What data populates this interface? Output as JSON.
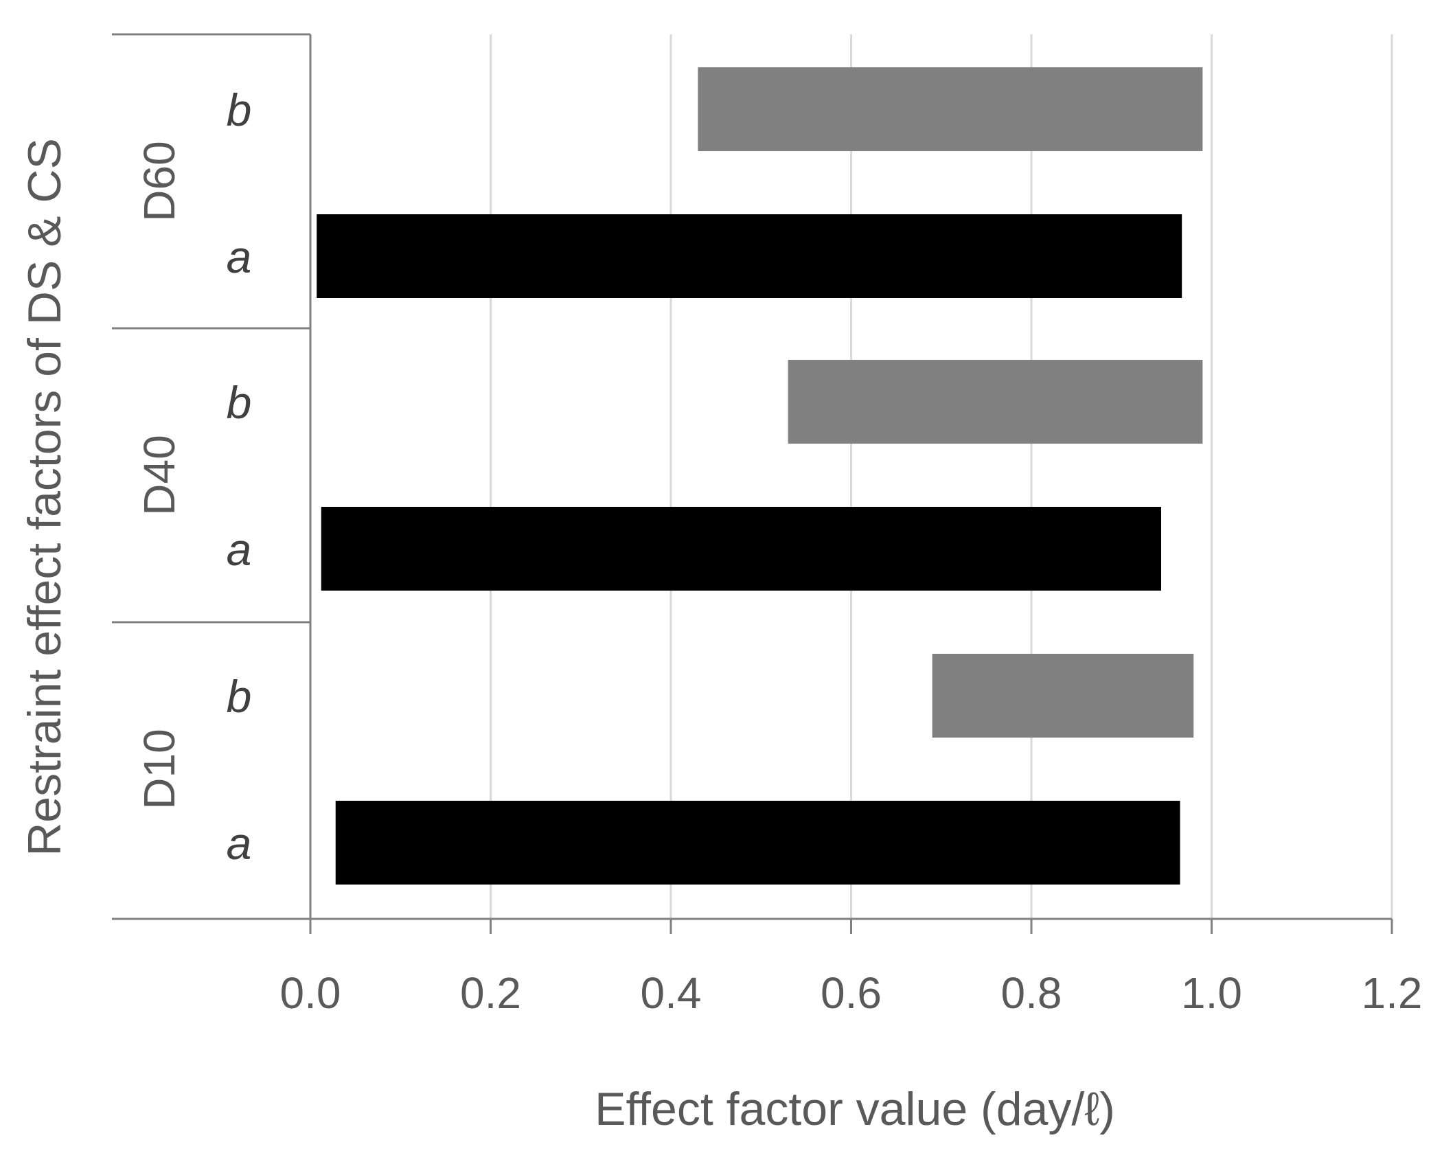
{
  "chart_data": {
    "type": "bar",
    "orientation": "horizontal",
    "title": "",
    "xlabel": "Effect factor value  (day/ℓ)",
    "ylabel": "Restraint effect factors of DS & CS",
    "xlim": [
      0.0,
      1.2
    ],
    "xticks": [
      "0.0",
      "0.2",
      "0.4",
      "0.6",
      "0.8",
      "1.0",
      "1.2"
    ],
    "grid": true,
    "legend": "none",
    "groups": [
      {
        "name": "D60",
        "bars": [
          {
            "label": "b",
            "start": 0.43,
            "end": 0.99,
            "color": "#808080"
          },
          {
            "label": "a",
            "start": 0.007,
            "end": 0.967,
            "color": "#000000"
          }
        ]
      },
      {
        "name": "D40",
        "bars": [
          {
            "label": "b",
            "start": 0.53,
            "end": 0.99,
            "color": "#808080"
          },
          {
            "label": "a",
            "start": 0.012,
            "end": 0.944,
            "color": "#000000"
          }
        ]
      },
      {
        "name": "D10",
        "bars": [
          {
            "label": "b",
            "start": 0.69,
            "end": 0.98,
            "color": "#808080"
          },
          {
            "label": "a",
            "start": 0.028,
            "end": 0.965,
            "color": "#000000"
          }
        ]
      }
    ]
  }
}
